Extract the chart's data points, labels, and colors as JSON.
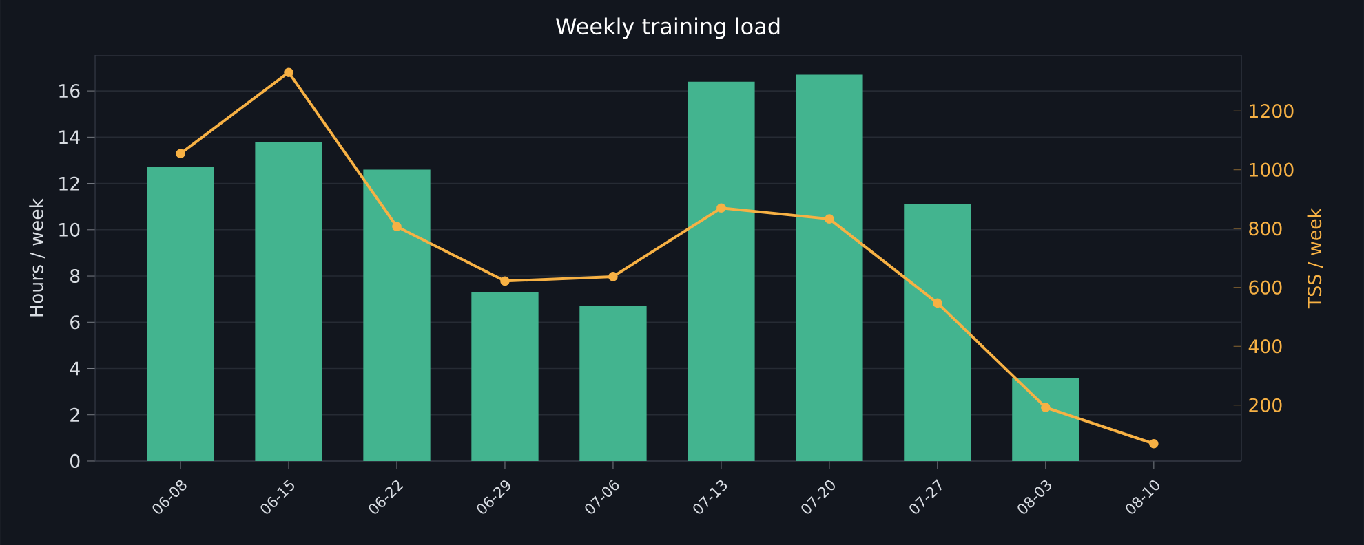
{
  "chart_data": {
    "type": "bar",
    "title": "Weekly training load",
    "xlabel": null,
    "ylabel": "Hours / week",
    "y2label": "TSS / week",
    "categories": [
      "06-08",
      "06-15",
      "06-22",
      "06-29",
      "07-06",
      "07-13",
      "07-20",
      "07-27",
      "08-03",
      "08-10"
    ],
    "series": [
      {
        "color": "#43b48f",
        "values": [
          12.7,
          13.8,
          12.6,
          7.3,
          6.7,
          16.4,
          16.7,
          11.1,
          3.6,
          null
        ]
      },
      {
        "type": "line",
        "axis": "y2",
        "color": "#f7b144",
        "marker": "circle",
        "values": [
          1055,
          1331,
          807,
          622,
          637,
          870,
          833,
          547,
          192,
          69
        ]
      }
    ],
    "ylim": [
      0,
      17.55
    ],
    "yticks": [
      0,
      2,
      4,
      6,
      8,
      10,
      12,
      14,
      16
    ],
    "y2lim": [
      10,
      1390
    ],
    "y2ticks": [
      200,
      400,
      600,
      800,
      1000,
      1200
    ],
    "grid": "y"
  }
}
